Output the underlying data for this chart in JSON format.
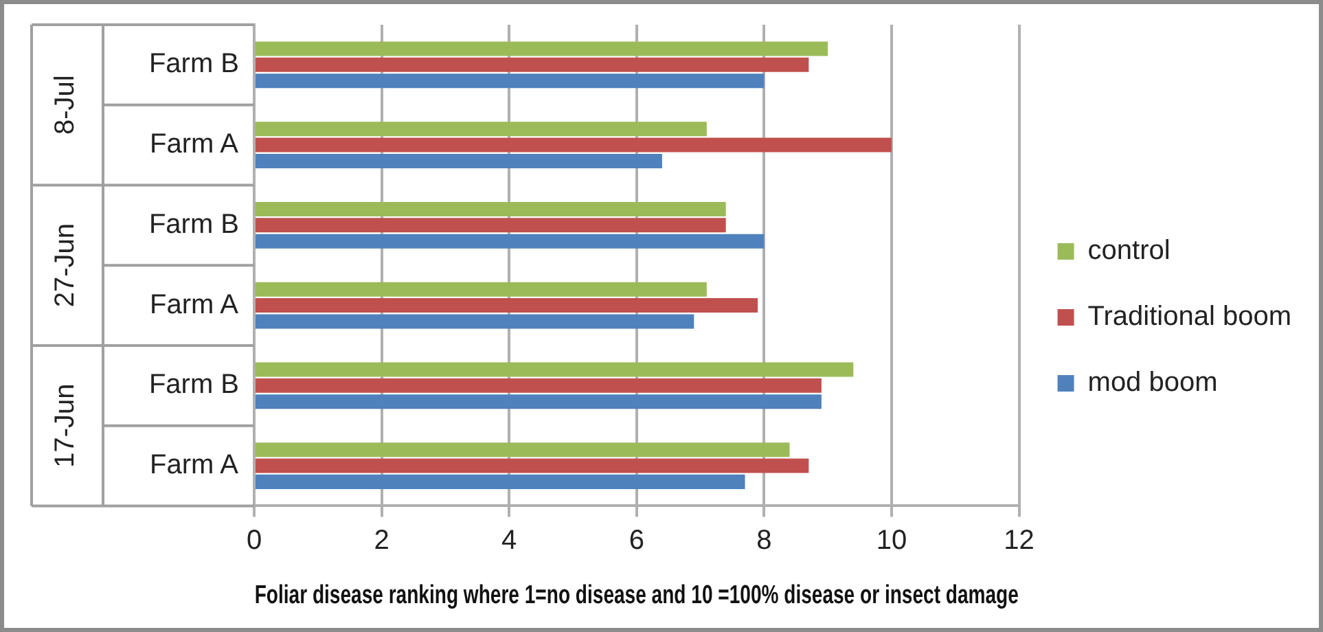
{
  "chart_data": {
    "type": "bar",
    "orientation": "horizontal",
    "xlabel": "Foliar disease ranking where 1=no disease and 10 =100% disease or insect damage",
    "categories": [
      "Farm B",
      "Farm A",
      "Farm B",
      "Farm A",
      "Farm B",
      "Farm A"
    ],
    "annotations": [
      "8-Jul",
      "27-Jun",
      "17-Jun"
    ],
    "series": [
      {
        "name": "control",
        "color": "#9bbb59",
        "values": [
          9.0,
          7.1,
          7.4,
          7.1,
          9.4,
          8.4
        ]
      },
      {
        "name": "Traditional boom",
        "color": "#c0504d",
        "values": [
          8.7,
          10,
          7.4,
          7.9,
          8.9,
          8.7
        ]
      },
      {
        "name": "mod boom",
        "color": "#4f81bd",
        "values": [
          8.0,
          6.4,
          8.0,
          6.9,
          8.9,
          7.7
        ]
      }
    ],
    "xlim": [
      0,
      12
    ],
    "xticks": [
      0,
      2,
      4,
      6,
      8,
      10,
      12
    ],
    "grid": "x",
    "legend": "right"
  }
}
